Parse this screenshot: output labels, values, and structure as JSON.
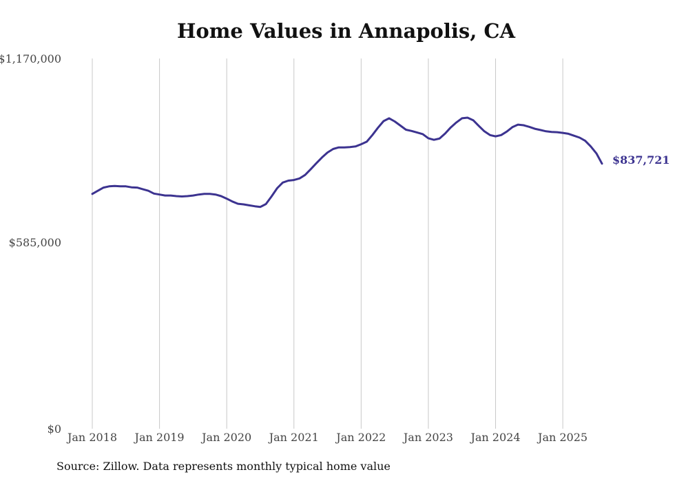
{
  "colors": {
    "line": "#3c3390",
    "grid": "#c8c8c8",
    "label": "#444444"
  },
  "source": "Source: Zillow. Data represents monthly typical home value",
  "chart_data": {
    "type": "line",
    "title": "Home Values in Annapolis, CA",
    "xlabel": "",
    "ylabel": "",
    "ylim": [
      0,
      1170000
    ],
    "xlim": [
      "2018-01",
      "2025-08"
    ],
    "yticks": [
      0,
      585000,
      1170000
    ],
    "ytick_labels": [
      "$0",
      "$585,000",
      "$1,170,000"
    ],
    "xticks": [
      "2018-01",
      "2019-01",
      "2020-01",
      "2021-01",
      "2022-01",
      "2023-01",
      "2024-01",
      "2025-01"
    ],
    "xtick_labels": [
      "Jan 2018",
      "Jan 2019",
      "Jan 2020",
      "Jan 2021",
      "Jan 2022",
      "Jan 2023",
      "Jan 2024",
      "Jan 2025"
    ],
    "grid": {
      "vertical": true,
      "horizontal": false
    },
    "end_label": "$837,721",
    "series": [
      {
        "x": [
          "2018-01",
          "2018-02",
          "2018-03",
          "2018-04",
          "2018-05",
          "2018-06",
          "2018-07",
          "2018-08",
          "2018-09",
          "2018-10",
          "2018-11",
          "2018-12",
          "2019-01",
          "2019-02",
          "2019-03",
          "2019-04",
          "2019-05",
          "2019-06",
          "2019-07",
          "2019-08",
          "2019-09",
          "2019-10",
          "2019-11",
          "2019-12",
          "2020-01",
          "2020-02",
          "2020-03",
          "2020-04",
          "2020-05",
          "2020-06",
          "2020-07",
          "2020-08",
          "2020-09",
          "2020-10",
          "2020-11",
          "2020-12",
          "2021-01",
          "2021-02",
          "2021-03",
          "2021-04",
          "2021-05",
          "2021-06",
          "2021-07",
          "2021-08",
          "2021-09",
          "2021-10",
          "2021-11",
          "2021-12",
          "2022-01",
          "2022-02",
          "2022-03",
          "2022-04",
          "2022-05",
          "2022-06",
          "2022-07",
          "2022-08",
          "2022-09",
          "2022-10",
          "2022-11",
          "2022-12",
          "2023-01",
          "2023-02",
          "2023-03",
          "2023-04",
          "2023-05",
          "2023-06",
          "2023-07",
          "2023-08",
          "2023-09",
          "2023-10",
          "2023-11",
          "2023-12",
          "2024-01",
          "2024-02",
          "2024-03",
          "2024-04",
          "2024-05",
          "2024-06",
          "2024-07",
          "2024-08",
          "2024-09",
          "2024-10",
          "2024-11",
          "2024-12",
          "2025-01",
          "2025-02",
          "2025-03",
          "2025-04",
          "2025-05",
          "2025-06",
          "2025-07",
          "2025-08"
        ],
        "values": [
          742000,
          752000,
          762000,
          766000,
          767000,
          766000,
          766000,
          763000,
          762000,
          757000,
          752000,
          743000,
          740000,
          737000,
          737000,
          735000,
          734000,
          735000,
          737000,
          740000,
          742000,
          742000,
          740000,
          735000,
          727000,
          718000,
          711000,
          709000,
          706000,
          703000,
          701000,
          710000,
          734000,
          760000,
          778000,
          784000,
          786000,
          791000,
          802000,
          820000,
          839000,
          857000,
          873000,
          884000,
          889000,
          889000,
          890000,
          892000,
          899000,
          907000,
          928000,
          951000,
          972000,
          981000,
          971000,
          958000,
          945000,
          941000,
          936000,
          931000,
          918000,
          913000,
          917000,
          933000,
          952000,
          968000,
          981000,
          983000,
          975000,
          957000,
          940000,
          928000,
          924000,
          928000,
          939000,
          953000,
          961000,
          959000,
          954000,
          948000,
          944000,
          940000,
          938000,
          937000,
          935000,
          932000,
          926000,
          920000,
          910000,
          892000,
          870000,
          837721
        ]
      }
    ]
  }
}
